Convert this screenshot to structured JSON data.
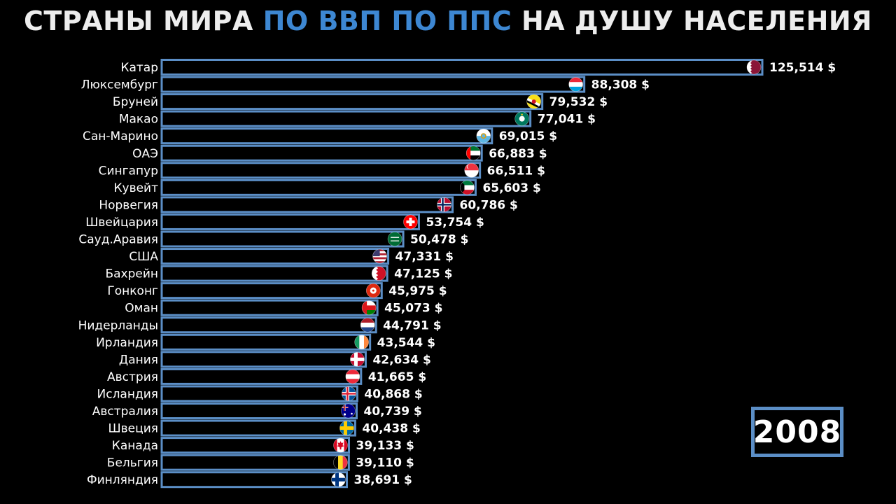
{
  "title": {
    "part1": "СТРАНЫ МИРА ",
    "part2": "ПО ВВП ПО ППС",
    "part3": " НА ДУШУ НАСЕЛЕНИЯ"
  },
  "year": "2008",
  "colors": {
    "bar_border": "#5b8ec6",
    "bar_fill": "#000000",
    "accent": "#3d87d2",
    "text": "#ffffff"
  },
  "chart_data": {
    "type": "bar",
    "orientation": "horizontal",
    "title": "СТРАНЫ МИРА ПО ВВП ПО ППС НА ДУШУ НАСЕЛЕНИЯ",
    "xlabel": "",
    "ylabel": "",
    "grid": false,
    "unit": "$",
    "categories": [
      "Катар",
      "Люксембург",
      "Бруней",
      "Макао",
      "Сан-Марино",
      "ОАЭ",
      "Сингапур",
      "Кувейт",
      "Норвегия",
      "Швейцария",
      "Сауд.Аравия",
      "США",
      "Бахрейн",
      "Гонконг",
      "Оман",
      "Нидерланды",
      "Ирландия",
      "Дания",
      "Австрия",
      "Исландия",
      "Австралия",
      "Швеция",
      "Канада",
      "Бельгия",
      "Финляндия"
    ],
    "values": [
      125514,
      88308,
      79532,
      77041,
      69015,
      66883,
      66511,
      65603,
      60786,
      53754,
      50478,
      47331,
      47125,
      45975,
      45073,
      44791,
      43544,
      42634,
      41665,
      40868,
      40739,
      40438,
      39133,
      39110,
      38691
    ],
    "value_labels": [
      "125,514 $",
      "88,308 $",
      "79,532 $",
      "77,041 $",
      "69,015 $",
      "66,883 $",
      "66,511 $",
      "65,603 $",
      "60,786 $",
      "53,754 $",
      "50,478 $",
      "47,331 $",
      "47,125 $",
      "45,975 $",
      "45,073 $",
      "44,791 $",
      "43,544 $",
      "42,634 $",
      "41,665 $",
      "40,868 $",
      "40,739 $",
      "40,438 $",
      "39,133 $",
      "39,110 $",
      "38,691 $"
    ],
    "flags": [
      "qatar-flag-icon",
      "luxembourg-flag-icon",
      "brunei-flag-icon",
      "macao-flag-icon",
      "san-marino-flag-icon",
      "uae-flag-icon",
      "singapore-flag-icon",
      "kuwait-flag-icon",
      "norway-flag-icon",
      "switzerland-flag-icon",
      "saudi-arabia-flag-icon",
      "usa-flag-icon",
      "bahrain-flag-icon",
      "hong-kong-flag-icon",
      "oman-flag-icon",
      "netherlands-flag-icon",
      "ireland-flag-icon",
      "denmark-flag-icon",
      "austria-flag-icon",
      "iceland-flag-icon",
      "australia-flag-icon",
      "sweden-flag-icon",
      "canada-flag-icon",
      "belgium-flag-icon",
      "finland-flag-icon"
    ],
    "xlim": [
      0,
      125514
    ]
  }
}
